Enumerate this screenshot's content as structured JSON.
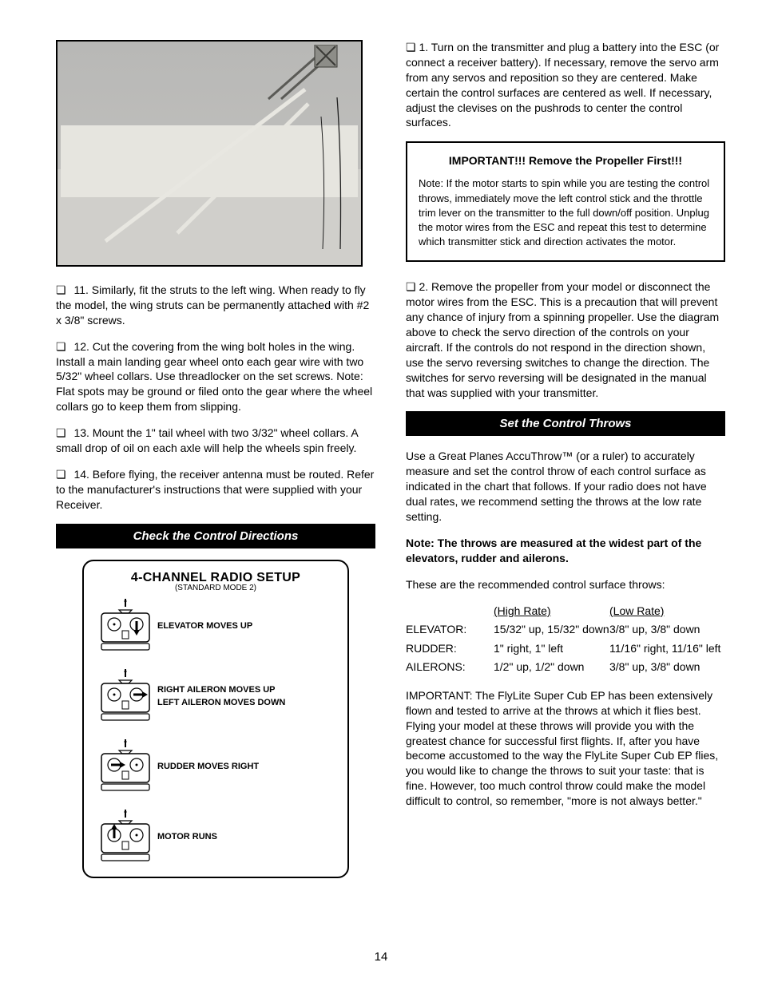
{
  "page_number": "14",
  "left": {
    "photo_caption": null,
    "step11_text": "11. Similarly, fit the struts to the left wing. When ready to fly the model, the wing struts can be permanently attached with #2 x 3/8\" screws.",
    "step12_text": "12. Cut the covering from the wing bolt holes in the wing. Install a main landing gear wheel onto each gear wire with two 5/32\" wheel collars. Use threadlocker on the set screws. Note: Flat spots may be ground or filed onto the gear where the wheel collars go to keep them from slipping.",
    "step13_text": "13. Mount the 1\" tail wheel with two 3/32\" wheel collars. A small drop of oil on each axle will help the wheels spin freely.",
    "step14_text": "14. Before flying, the receiver antenna must be routed. Refer to the manufacturer's instructions that were supplied with your Receiver.",
    "section_bar": "Check the Control Directions",
    "diagram": {
      "title": "4-CHANNEL RADIO SETUP",
      "subtitle": "(STANDARD MODE 2)",
      "rows": [
        {
          "arrow": "down-right",
          "highlight_stick": "right",
          "text_lines": [
            "ELEVATOR MOVES UP"
          ]
        },
        {
          "arrow": "right-right",
          "highlight_stick": "right",
          "text_lines": [
            "RIGHT AILERON MOVES UP",
            "LEFT AILERON MOVES DOWN"
          ]
        },
        {
          "arrow": "right-left",
          "highlight_stick": "left",
          "text_lines": [
            "RUDDER MOVES RIGHT"
          ]
        },
        {
          "arrow": "up-left",
          "highlight_stick": "left",
          "text_lines": [
            "MOTOR RUNS"
          ]
        }
      ]
    }
  },
  "right": {
    "para1_text": "1. Turn on the transmitter and plug a battery into the ESC (or connect a receiver battery). If necessary, remove the servo arm from any servos and reposition so they are centered. Make certain the control surfaces are centered as well. If necessary, adjust the clevises on the pushrods to center the control surfaces.",
    "boxed": {
      "center_line": "IMPORTANT!!! Remove the Propeller First!!!",
      "note": "Note: If the motor starts to spin while you are testing the control throws, immediately move the left control stick and the throttle trim lever on the transmitter to the full down/off position. Unplug the motor wires from the ESC and repeat this test to determine which transmitter stick and direction activates the motor."
    },
    "para2_text": "2. Remove the propeller from your model or disconnect the motor wires from the ESC. This is a precaution that will prevent any chance of injury from a spinning propeller. Use the diagram above to check the servo direction of the controls on your aircraft. If the controls do not respond in the direction shown, use the servo reversing switches to change the direction. The switches for servo reversing will be designated in the manual that was supplied with your transmitter.",
    "section_bar": "Set the Control Throws",
    "throws_intro": "Use a Great Planes AccuThrow™ (or a ruler) to accurately measure and set the control throw of each control surface as indicated in the chart that follows. If your radio does not have dual rates, we recommend setting the throws at the low rate setting.",
    "note_text": "Note: The throws are measured at the widest part of the elevators, rudder and ailerons.",
    "throws": {
      "heading": "These are the recommended control surface throws:",
      "rows": [
        {
          "label": "ELEVATOR:",
          "high": "15/32\" up, 15/32\" down",
          "low": "3/8\" up, 3/8\" down"
        },
        {
          "label": "RUDDER:",
          "high": "1\" right, 1\" left",
          "low": "11/16\" right, 11/16\" left"
        },
        {
          "label": "AILERONS:",
          "high": "1/2\" up, 1/2\" down",
          "low": "3/8\" up, 3/8\" down"
        }
      ],
      "high_label": "(High Rate)",
      "low_label": "(Low Rate)"
    },
    "important_text": "IMPORTANT: The FlyLite Super Cub EP has been extensively flown and tested to arrive at the throws at which it flies best. Flying your model at these throws will provide you with the greatest chance for successful first flights. If, after you have become accustomed to the way the FlyLite Super Cub EP flies, you would like to change the throws to suit your taste: that is fine. However, too much control throw could make the model difficult to control, so remember, \"more is not always better.\""
  },
  "colors": {
    "text": "#000000",
    "bg": "#ffffff",
    "photo_bench": "#d0cfcb",
    "photo_bg1": "#b8b8b6",
    "photo_surface": "#e6e5df"
  }
}
